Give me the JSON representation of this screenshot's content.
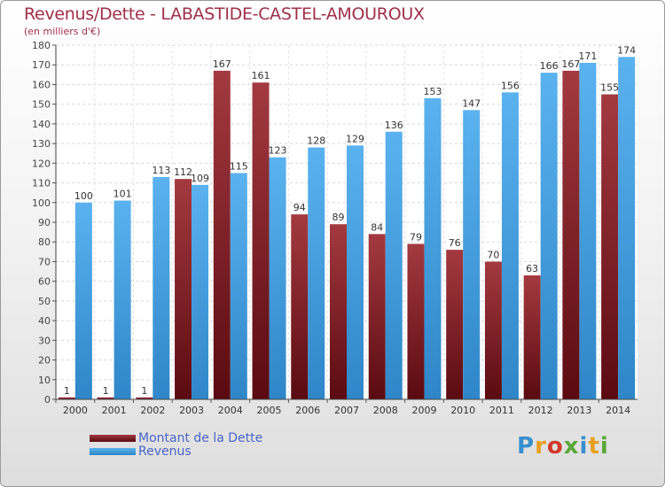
{
  "chart_data": {
    "type": "bar",
    "title": "Revenus/Dette - LABASTIDE-CASTEL-AMOUROUX",
    "subtitle": "(en milliers d'€)",
    "categories": [
      "2000",
      "2001",
      "2002",
      "2003",
      "2004",
      "2005",
      "2006",
      "2007",
      "2008",
      "2009",
      "2010",
      "2011",
      "2012",
      "2013",
      "2014"
    ],
    "series": [
      {
        "name": "Montant de la Dette",
        "color": "#7a1c24",
        "values": [
          1,
          1,
          1,
          112,
          167,
          161,
          94,
          89,
          84,
          79,
          76,
          70,
          63,
          167,
          155
        ]
      },
      {
        "name": "Revenus",
        "color": "#4aa3e3",
        "values": [
          100,
          101,
          113,
          109,
          115,
          123,
          128,
          129,
          136,
          153,
          147,
          156,
          166,
          171,
          174
        ]
      }
    ],
    "ylim": [
      0,
      180
    ],
    "ytick_step": 10,
    "grid": true,
    "legend_position": "bottom-left"
  },
  "logo": {
    "letters": [
      "P",
      "r",
      "o",
      "x",
      "i",
      "t",
      "i"
    ],
    "colors": [
      "#3a8fd0",
      "#e8a020",
      "#d03a2a",
      "#5aa83a",
      "#3a8fd0",
      "#e8a020",
      "#5aa83a"
    ]
  }
}
